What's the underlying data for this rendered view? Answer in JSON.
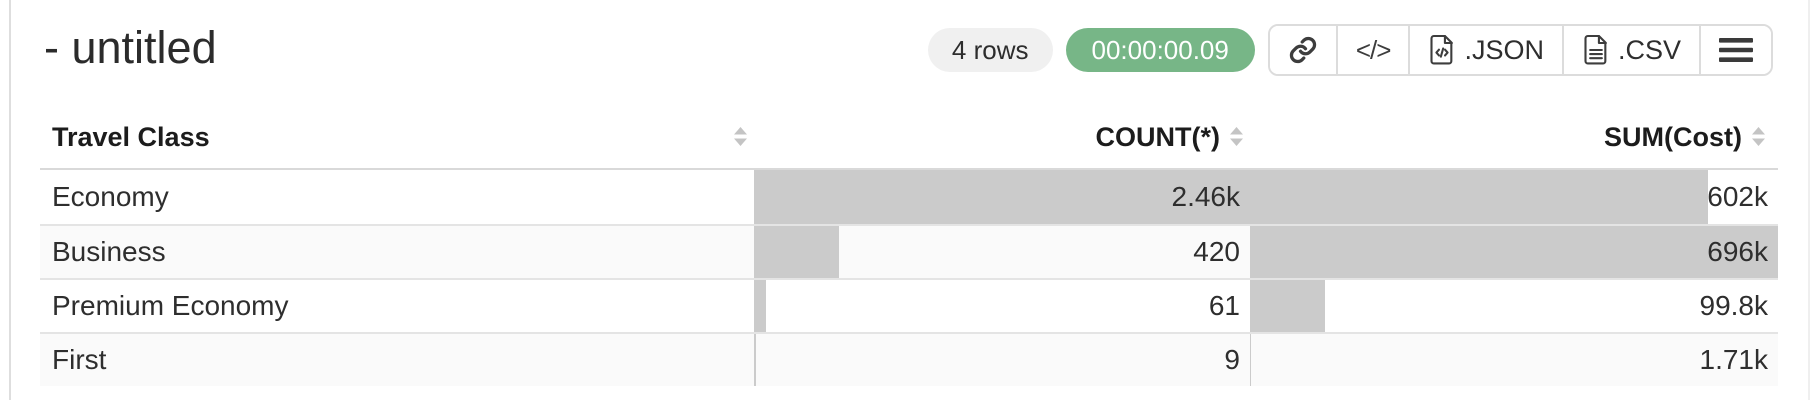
{
  "window": {
    "title": "- untitled"
  },
  "toolbar": {
    "rows_badge": "4 rows",
    "timer": "00:00:00.09",
    "code_glyph": "</>",
    "json_label": ".JSON",
    "csv_label": ".CSV"
  },
  "table": {
    "columns": [
      {
        "label": "Travel Class",
        "align": "left"
      },
      {
        "label": "COUNT(*)",
        "align": "right"
      },
      {
        "label": "SUM(Cost)",
        "align": "right"
      }
    ],
    "rows": [
      {
        "label": "Economy",
        "count": "2.46k",
        "count_pct": 100,
        "sum": "602k",
        "sum_pct": 86.7
      },
      {
        "label": "Business",
        "count": "420",
        "count_pct": 17.1,
        "sum": "696k",
        "sum_pct": 100
      },
      {
        "label": "Premium Economy",
        "count": "61",
        "count_pct": 2.5,
        "sum": "99.8k",
        "sum_pct": 14.2
      },
      {
        "label": "First",
        "count": "9",
        "count_pct": 0.37,
        "sum": "1.71k",
        "sum_pct": 0.25
      }
    ]
  },
  "colors": {
    "timer_bg": "#77b687",
    "badge_bg": "#f0f0f0",
    "bar": "#cbcbcb",
    "stripe": "#fafafa",
    "divider": "#e4e4e4",
    "header_divider": "#d9d9d9"
  }
}
